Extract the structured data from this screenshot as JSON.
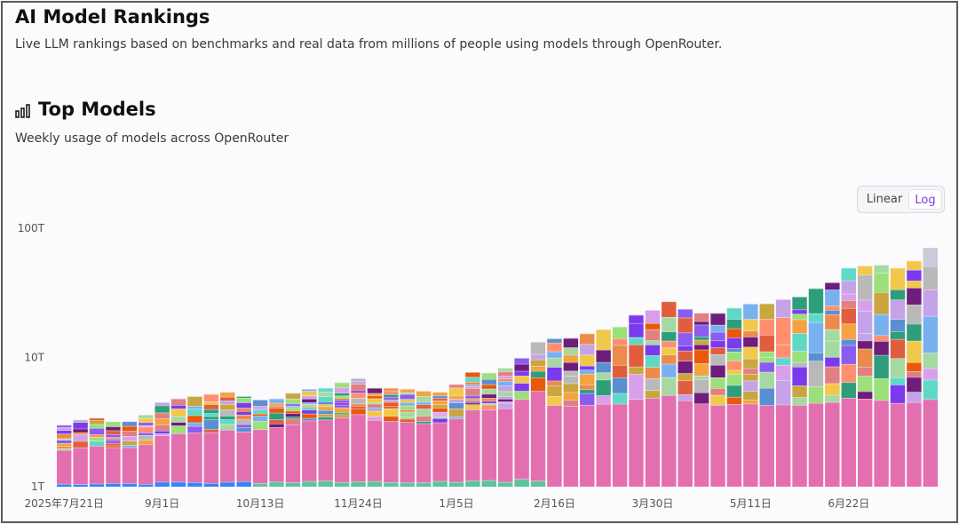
{
  "header": {
    "title": "AI Model Rankings",
    "subtitle": "Live LLM rankings based on benchmarks and real data from millions of people using models through OpenRouter."
  },
  "section": {
    "title": "Top Models",
    "subtitle": "Weekly usage of models across OpenRouter",
    "icon": "bar-chart-icon"
  },
  "scale_toggle": {
    "linear_label": "Linear",
    "log_label": "Log",
    "selected": "Log",
    "selected_color": "#7b3fe4"
  },
  "chart_data": {
    "type": "bar",
    "stacked": true,
    "yscale": "log",
    "ylim_tokens": [
      1000000000000,
      100000000000000
    ],
    "y_tick_labels": [
      "1T",
      "10T",
      "100T"
    ],
    "x_tick_labels": [
      {
        "label": "2025年7月21日",
        "week": 0
      },
      {
        "label": "9月1日",
        "week": 6
      },
      {
        "label": "10月13日",
        "week": 12
      },
      {
        "label": "11月24日",
        "week": 18
      },
      {
        "label": "1月5日",
        "week": 24
      },
      {
        "label": "2月16日",
        "week": 30
      },
      {
        "label": "3月30日",
        "week": 36
      },
      {
        "label": "5月11日",
        "week": 42
      },
      {
        "label": "6月22日",
        "week": 48
      }
    ],
    "weekly_total_tokens_T": [
      3.0,
      3.3,
      3.4,
      3.2,
      3.2,
      3.6,
      4.5,
      4.8,
      5.0,
      5.2,
      5.4,
      5.0,
      4.7,
      4.8,
      5.3,
      5.7,
      5.8,
      6.4,
      6.9,
      5.8,
      5.8,
      5.7,
      5.5,
      5.4,
      6.2,
      7.7,
      7.6,
      8.3,
      9.9,
      13.2,
      14.0,
      14.1,
      15.3,
      16.5,
      17.3,
      21.3,
      23.3,
      27.1,
      23.7,
      22.1,
      22.0,
      24.2,
      26.0,
      26.1,
      28.2,
      29.5,
      34.2,
      38.0,
      49.3,
      51.2,
      52.0,
      49.3,
      56.0,
      70.5
    ],
    "segment_colors": [
      "#e46fb0",
      "#5fc39c",
      "#3b82f6",
      "#e08080",
      "#f4a340",
      "#f0c84a",
      "#7c3aed",
      "#9be07a",
      "#6f1d7a",
      "#ea580c",
      "#5a8fd2",
      "#e05e3e",
      "#8a5cf0",
      "#2e9e7a",
      "#d9a0ea",
      "#c9a640",
      "#ec8b4c",
      "#78b0f0",
      "#a6d9a2",
      "#c5a3e8",
      "#ff8f6e",
      "#60d8c8",
      "#b9b9b9"
    ],
    "note": "Each weekly bar is stacked by model; the pink segment is the largest single-model share in most weeks."
  }
}
